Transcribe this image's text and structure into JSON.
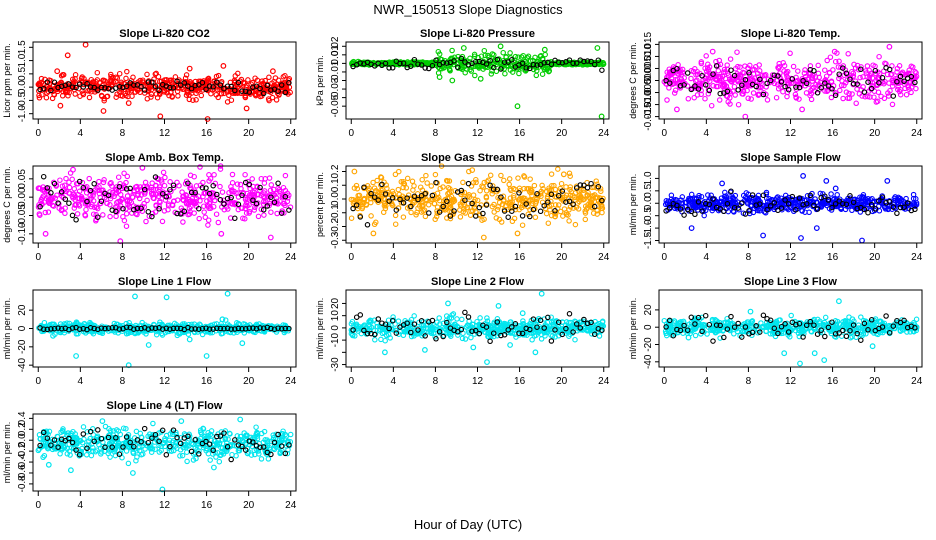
{
  "figure": {
    "title": "NWR_150513  Slope Diagnostics",
    "xlabel": "Hour of Day (UTC)"
  },
  "chart_data": [
    {
      "id": "co2",
      "type": "scatter",
      "title": "Slope Li-820 CO2",
      "ylabel": "Licor ppm per min.",
      "xlim": [
        -0.5,
        24.5
      ],
      "xticks": [
        0,
        4,
        8,
        12,
        16,
        20,
        24
      ],
      "ylim": [
        -1.2,
        1.7
      ],
      "yticks": [
        -1.0,
        -0.5,
        0.0,
        0.5,
        1.0,
        1.5
      ],
      "ytick_labels": [
        "-1.0",
        "-0.5",
        "0.0",
        "0.5",
        "1.0",
        "1.5"
      ],
      "color": "#ff0000",
      "dense_center": 0.0,
      "dense_spread": 0.22,
      "outliers": [
        [
          1.8,
          0.6
        ],
        [
          2.1,
          -0.7
        ],
        [
          2.8,
          1.2
        ],
        [
          4.5,
          1.6
        ],
        [
          6.2,
          -0.9
        ],
        [
          8.6,
          -0.6
        ],
        [
          11.6,
          -1.1
        ],
        [
          14.4,
          0.7
        ],
        [
          16.1,
          -1.2
        ],
        [
          17.6,
          0.8
        ],
        [
          19.8,
          -0.8
        ],
        [
          22.3,
          0.6
        ]
      ],
      "grey_center": 0.0,
      "grey_spread": 0.12
    },
    {
      "id": "pressure",
      "type": "scatter",
      "title": "Slope Li-820 Pressure",
      "ylabel": "kPa per min.",
      "xlim": [
        -0.5,
        24.5
      ],
      "xticks": [
        0,
        4,
        8,
        12,
        16,
        20,
        24
      ],
      "ylim": [
        -0.065,
        0.025
      ],
      "yticks": [
        -0.05,
        -0.04,
        -0.03,
        -0.02,
        -0.01,
        0.0,
        0.01,
        0.02
      ],
      "ytick_labels": [
        "-0.05",
        "",
        "-0.03",
        "",
        "-0.01",
        "",
        "0.01",
        "0.02"
      ],
      "color": "#00cc00",
      "dense_center": 0.0,
      "dense_spread": 0.006,
      "outliers": [
        [
          8.4,
          -0.016
        ],
        [
          9.6,
          -0.02
        ],
        [
          10.7,
          0.018
        ],
        [
          12.3,
          -0.018
        ],
        [
          14.2,
          0.02
        ],
        [
          15.8,
          -0.05
        ],
        [
          18.4,
          0.016
        ],
        [
          23.8,
          -0.062
        ],
        [
          23.4,
          0.018
        ]
      ],
      "grey_center": 0.0,
      "grey_spread": 0.003
    },
    {
      "id": "temp820",
      "type": "scatter",
      "title": "Slope Li-820 Temp.",
      "ylabel": "degrees C per min.",
      "xlim": [
        -0.5,
        24.5
      ],
      "xticks": [
        0,
        4,
        8,
        12,
        16,
        20,
        24
      ],
      "ylim": [
        -0.016,
        0.016
      ],
      "yticks": [
        -0.015,
        -0.01,
        -0.005,
        0.0,
        0.005,
        0.01,
        0.015
      ],
      "ytick_labels": [
        "-0.015",
        "-0.010",
        "-0.005",
        "0.000",
        "0.005",
        "0.010",
        "0.015"
      ],
      "color": "#ff00ff",
      "dense_center": 0.0,
      "dense_spread": 0.004,
      "outliers": [
        [
          1.2,
          -0.012
        ],
        [
          4.6,
          0.012
        ],
        [
          7.7,
          -0.015
        ],
        [
          13.1,
          -0.012
        ],
        [
          16.2,
          0.012
        ],
        [
          21.4,
          0.014
        ]
      ],
      "grey_center": 0.0,
      "grey_spread": 0.003
    },
    {
      "id": "ambbox",
      "type": "scatter",
      "title": "Slope Amb. Box Temp.",
      "ylabel": "degrees C per min.",
      "xlim": [
        -0.5,
        24.5
      ],
      "xticks": [
        0,
        4,
        8,
        12,
        16,
        20,
        24
      ],
      "ylim": [
        -0.125,
        0.085
      ],
      "yticks": [
        -0.1,
        -0.05,
        0.0,
        0.05
      ],
      "ytick_labels": [
        "-0.10",
        "-0.05",
        "0.00",
        "0.05"
      ],
      "color": "#ff00ff",
      "dense_center": 0.0,
      "dense_spread": 0.03,
      "outliers": [
        [
          0.7,
          -0.1
        ],
        [
          3.3,
          0.075
        ],
        [
          7.8,
          -0.12
        ],
        [
          9.9,
          0.08
        ],
        [
          17.4,
          -0.1
        ],
        [
          22.1,
          -0.11
        ]
      ],
      "grey_center": 0.0,
      "grey_spread": 0.03
    },
    {
      "id": "rh",
      "type": "scatter",
      "title": "Slope Gas Stream RH",
      "ylabel": "percent per min.",
      "xlim": [
        -0.5,
        24.5
      ],
      "xticks": [
        0,
        4,
        8,
        12,
        16,
        20,
        24
      ],
      "ylim": [
        -0.32,
        0.24
      ],
      "yticks": [
        -0.3,
        -0.2,
        -0.1,
        0.0,
        0.1,
        0.2
      ],
      "ytick_labels": [
        "-0.3",
        "-0.2",
        "-0.1",
        "0.0",
        "0.1",
        "0.2"
      ],
      "color": "#ffa500",
      "dense_center": 0.0,
      "dense_spread": 0.08,
      "outliers": [
        [
          0.3,
          0.2
        ],
        [
          2.1,
          -0.25
        ],
        [
          11.5,
          0.21
        ],
        [
          12.6,
          -0.28
        ],
        [
          15.8,
          -0.25
        ],
        [
          20.2,
          0.18
        ]
      ],
      "grey_center": 0.0,
      "grey_spread": 0.07
    },
    {
      "id": "sample",
      "type": "scatter",
      "title": "Slope Sample Flow",
      "ylabel": "ml/min per min.",
      "xlim": [
        -0.5,
        24.5
      ],
      "xticks": [
        0,
        4,
        8,
        12,
        16,
        20,
        24
      ],
      "ylim": [
        -1.6,
        1.5
      ],
      "yticks": [
        -1.5,
        -1.0,
        -0.5,
        0.0,
        0.5,
        1.0
      ],
      "ytick_labels": [
        "-1.5",
        "-1.0",
        "-0.5",
        "0.0",
        "0.5",
        "1.0"
      ],
      "color": "#0000ff",
      "dense_center": 0.0,
      "dense_spread": 0.18,
      "outliers": [
        [
          2.6,
          -1.0
        ],
        [
          5.5,
          0.8
        ],
        [
          9.4,
          -1.3
        ],
        [
          13.0,
          -1.4
        ],
        [
          13.2,
          1.1
        ],
        [
          14.5,
          -1.0
        ],
        [
          15.4,
          0.9
        ],
        [
          16.3,
          0.6
        ],
        [
          18.8,
          -1.5
        ],
        [
          21.2,
          0.9
        ]
      ],
      "grey_center": 0.0,
      "grey_spread": 0.2
    },
    {
      "id": "line1",
      "type": "scatter",
      "title": "Slope Line 1 Flow",
      "ylabel": "ml/min per min.",
      "xlim": [
        -0.5,
        24.5
      ],
      "xticks": [
        0,
        4,
        8,
        12,
        16,
        20,
        24
      ],
      "ylim": [
        -42,
        42
      ],
      "yticks": [
        -40,
        -20,
        0,
        20
      ],
      "ytick_labels": [
        "-40",
        "-20",
        "0",
        "20"
      ],
      "color": "#00e5ee",
      "dense_center": 0.0,
      "dense_spread": 3.0,
      "outliers": [
        [
          1.4,
          -8
        ],
        [
          3.6,
          -30
        ],
        [
          8.6,
          -40
        ],
        [
          9.2,
          35
        ],
        [
          10.5,
          -18
        ],
        [
          12.2,
          34
        ],
        [
          14.4,
          -12
        ],
        [
          16.0,
          -30
        ],
        [
          17.5,
          10
        ],
        [
          18.0,
          38
        ],
        [
          19.4,
          -16
        ]
      ],
      "grey_center": 0.0,
      "grey_spread": 0.6
    },
    {
      "id": "line2",
      "type": "scatter",
      "title": "Slope Line 2 Flow",
      "ylabel": "ml/min per min.",
      "xlim": [
        -0.5,
        24.5
      ],
      "xticks": [
        0,
        4,
        8,
        12,
        16,
        20,
        24
      ],
      "ylim": [
        -32,
        31
      ],
      "yticks": [
        -30,
        -20,
        -10,
        0,
        10,
        20
      ],
      "ytick_labels": [
        "-30",
        "",
        "-10",
        "0",
        "10",
        "20"
      ],
      "color": "#00e5ee",
      "dense_center": 0.0,
      "dense_spread": 4.0,
      "outliers": [
        [
          3.2,
          -20
        ],
        [
          7.0,
          -18
        ],
        [
          9.2,
          20
        ],
        [
          11.6,
          -16
        ],
        [
          12.9,
          -28
        ],
        [
          14.0,
          18
        ],
        [
          15.1,
          -14
        ],
        [
          16.3,
          12
        ],
        [
          17.5,
          -20
        ],
        [
          18.1,
          28
        ]
      ],
      "grey_center": 0.0,
      "grey_spread": 5.0
    },
    {
      "id": "line3",
      "type": "scatter",
      "title": "Slope Line 3 Flow",
      "ylabel": "ml/min per min.",
      "xlim": [
        -0.5,
        24.5
      ],
      "xticks": [
        0,
        4,
        8,
        12,
        16,
        20,
        24
      ],
      "ylim": [
        -46,
        43
      ],
      "yticks": [
        -40,
        -20,
        0,
        20
      ],
      "ytick_labels": [
        "-40",
        "-20",
        "0",
        "20"
      ],
      "color": "#00e5ee",
      "dense_center": 0.0,
      "dense_spread": 5.0,
      "outliers": [
        [
          2.3,
          -12
        ],
        [
          8.2,
          18
        ],
        [
          11.4,
          -30
        ],
        [
          12.9,
          -42
        ],
        [
          14.3,
          -30
        ],
        [
          15.2,
          -38
        ],
        [
          16.6,
          30
        ],
        [
          17.7,
          -12
        ],
        [
          19.8,
          -22
        ]
      ],
      "grey_center": 0.0,
      "grey_spread": 7.0
    },
    {
      "id": "line4",
      "type": "scatter",
      "title": "Slope Line 4 (LT) Flow",
      "ylabel": "ml/min per min.",
      "xlim": [
        -0.5,
        24.5
      ],
      "xticks": [
        0,
        4,
        8,
        12,
        16,
        20,
        24
      ],
      "ylim": [
        -0.93,
        0.48
      ],
      "yticks": [
        -0.8,
        -0.6,
        -0.4,
        -0.2,
        0.0,
        0.2,
        0.4
      ],
      "ytick_labels": [
        "-0.8",
        "-0.6",
        "-0.4",
        "-0.2",
        "0.0",
        "0.2",
        "0.4"
      ],
      "color": "#00e5ee",
      "dense_center": -0.05,
      "dense_spread": 0.13,
      "outliers": [
        [
          1.0,
          -0.45
        ],
        [
          3.1,
          -0.55
        ],
        [
          6.1,
          0.35
        ],
        [
          9.0,
          -0.6
        ],
        [
          11.8,
          -0.9
        ],
        [
          13.6,
          0.35
        ],
        [
          16.7,
          -0.5
        ],
        [
          19.2,
          0.38
        ]
      ],
      "grey_center": -0.05,
      "grey_spread": 0.12
    }
  ]
}
